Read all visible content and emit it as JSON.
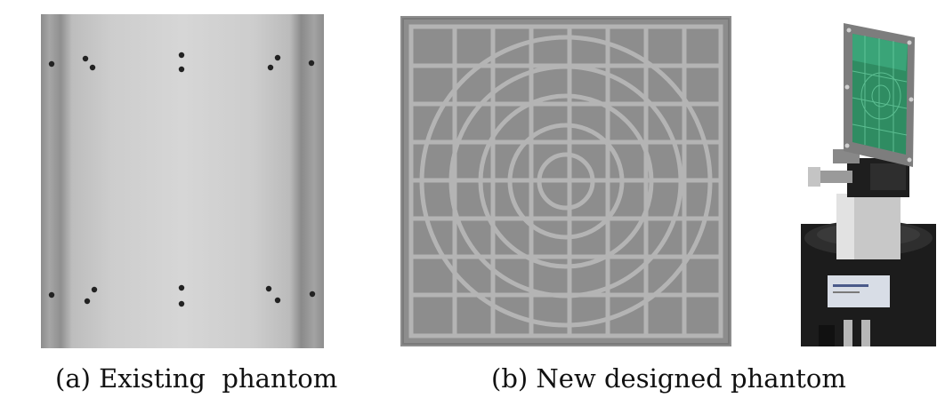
{
  "figure": {
    "panel_a": {
      "caption": "(a) Existing  phantom",
      "image": "cylindrical-phantom-xray"
    },
    "panel_b": {
      "caption": "(b) New designed phantom",
      "radiograph": "grid-ring-phantom-xray",
      "photo": "phantom-on-rotation-stage"
    }
  }
}
